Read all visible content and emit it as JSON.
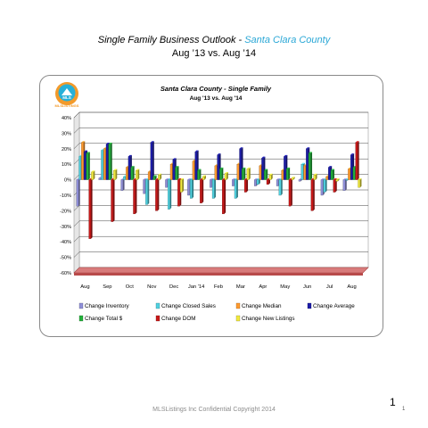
{
  "slide": {
    "title_prefix": "Single Family Business Outlook - ",
    "title_county": "Santa Clara County",
    "subtitle": "Aug ’13 vs. Aug ’14",
    "footer": "MLSListings Inc Confidential Copyright 2014",
    "page_number": "1",
    "page_number_small": "1",
    "logo_text": "MLSLISTINGS",
    "logo_letters": "MLS",
    "colors": {
      "county_accent": "#2aa7d6"
    }
  },
  "chart_data": {
    "type": "bar",
    "title": "Santa Clara County - Single Family",
    "subtitle": "Aug '13 vs. Aug '14",
    "categories": [
      "Aug",
      "Sep",
      "Oct",
      "Nov",
      "Dec",
      "Jan '14",
      "Feb",
      "Mar",
      "Apr",
      "May",
      "Jun",
      "Jul",
      "Aug"
    ],
    "ylim": [
      -60,
      40
    ],
    "yticks": [
      -60,
      -50,
      -40,
      -30,
      -20,
      -10,
      0,
      10,
      20,
      30,
      40
    ],
    "ytick_labels": [
      "-60%",
      "-50%",
      "-40%",
      "-30%",
      "-20%",
      "-10%",
      "0%",
      "10%",
      "20%",
      "30%",
      "40%"
    ],
    "grid": true,
    "legend_position": "bottom",
    "series": [
      {
        "name": "Change Inventory",
        "color": "#8f8fd8",
        "values": [
          -17,
          1,
          -7,
          -9,
          -5,
          -10,
          -5,
          -4,
          -4,
          -4,
          -1,
          -10,
          -7
        ]
      },
      {
        "name": "Change Closed Sales",
        "color": "#4fd1e0",
        "values": [
          15,
          19,
          2,
          -16,
          -19,
          -12,
          -12,
          -12,
          -3,
          -10,
          10,
          -8,
          0
        ]
      },
      {
        "name": "Change Median",
        "color": "#ff9a2e",
        "values": [
          24,
          20,
          8,
          5,
          10,
          12,
          9,
          10,
          9,
          6,
          9,
          2,
          7
        ]
      },
      {
        "name": "Change Average",
        "color": "#1c1ca8",
        "values": [
          18,
          23,
          15,
          24,
          13,
          18,
          16,
          20,
          14,
          15,
          20,
          8,
          16
        ]
      },
      {
        "name": "Change Total $",
        "color": "#22b03a",
        "values": [
          17,
          23,
          8,
          2,
          8,
          6,
          7,
          7,
          6,
          7,
          17,
          6,
          8
        ]
      },
      {
        "name": "Change DOM",
        "color": "#c81818",
        "values": [
          -38,
          -27,
          -22,
          -20,
          -17,
          -15,
          -22,
          -8,
          -3,
          -17,
          -20,
          -8,
          24
        ]
      },
      {
        "name": "Change New Listings",
        "color": "#f2ea3c",
        "values": [
          5,
          6,
          6,
          3,
          -8,
          2,
          4,
          7,
          3,
          1,
          3,
          -1,
          -5
        ]
      }
    ]
  }
}
